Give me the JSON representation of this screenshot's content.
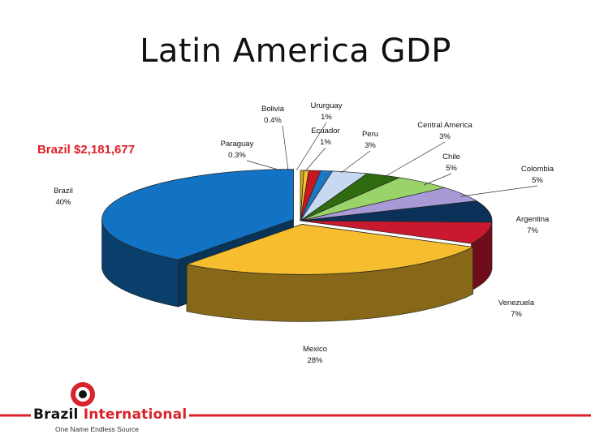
{
  "slide": {
    "title": "Latin America GDP",
    "callout": "Brazil $2,181,677"
  },
  "brand": {
    "name_part1": "Brazil",
    "name_part2": "International",
    "tagline": "One Name Endless Source",
    "accent_color": "#d9222a"
  },
  "chart_data": {
    "type": "pie",
    "style": "3d-exploded",
    "start_from": "top, clockwise",
    "slices": [
      {
        "name": "Paraguay",
        "pct_label": "0.3%",
        "value": 0.3,
        "color": "#d4a70c"
      },
      {
        "name": "Bolivia",
        "pct_label": "0.4%",
        "value": 0.4,
        "color": "#f4c034"
      },
      {
        "name": "Ururguay",
        "pct_label": "1%",
        "value": 1,
        "color": "#c8181f"
      },
      {
        "name": "Ecuador",
        "pct_label": "1%",
        "value": 1,
        "color": "#1e77c3"
      },
      {
        "name": "Peru",
        "pct_label": "3%",
        "value": 3,
        "color": "#c6d9f1"
      },
      {
        "name": "Central America",
        "pct_label": "3%",
        "value": 3,
        "color": "#2f6b0f"
      },
      {
        "name": "Chile",
        "pct_label": "5%",
        "value": 5,
        "color": "#9ad36a"
      },
      {
        "name": "Colombia",
        "pct_label": "5%",
        "value": 5,
        "color": "#a79ad6"
      },
      {
        "name": "Argentina",
        "pct_label": "7%",
        "value": 7,
        "color": "#0c3159"
      },
      {
        "name": "Venezuela",
        "pct_label": "7%",
        "value": 7,
        "color": "#c9192f"
      },
      {
        "name": "Mexico",
        "pct_label": "28%",
        "value": 28,
        "color": "#f6bd2e"
      },
      {
        "name": "Brazil",
        "pct_label": "40%",
        "value": 40,
        "color": "#1273c4"
      }
    ]
  }
}
